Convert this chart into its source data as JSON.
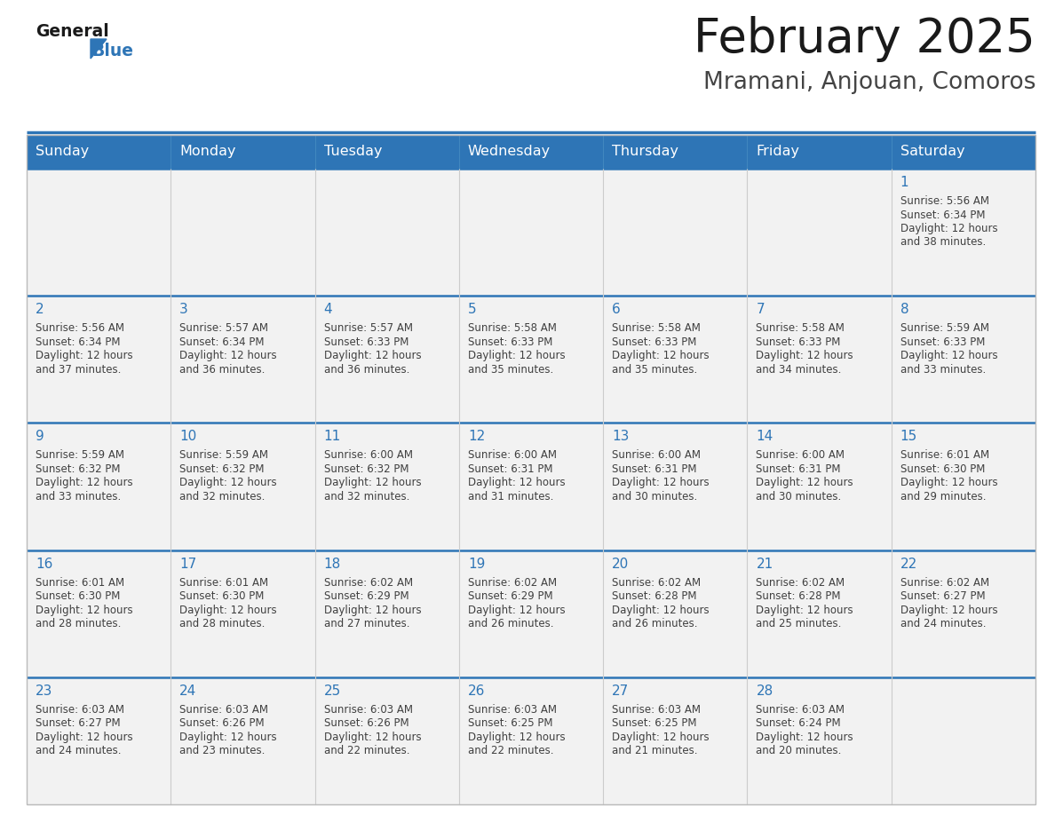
{
  "title": "February 2025",
  "subtitle": "Mramani, Anjouan, Comoros",
  "days_of_week": [
    "Sunday",
    "Monday",
    "Tuesday",
    "Wednesday",
    "Thursday",
    "Friday",
    "Saturday"
  ],
  "header_bg": "#2E75B6",
  "header_text": "#FFFFFF",
  "cell_bg_light": "#F2F2F2",
  "cell_bg_white": "#FFFFFF",
  "border_color": "#AAAAAA",
  "row_sep_color": "#2E75B6",
  "day_number_color": "#2E75B6",
  "cell_text_color": "#404040",
  "title_color": "#1a1a1a",
  "subtitle_color": "#444444",
  "logo_general_color": "#1a1a1a",
  "logo_blue_color": "#2E75B6",
  "weeks": [
    [
      null,
      null,
      null,
      null,
      null,
      null,
      {
        "day": 1,
        "sunrise": "5:56 AM",
        "sunset": "6:34 PM",
        "daylight_hours": 12,
        "daylight_minutes": 38
      }
    ],
    [
      {
        "day": 2,
        "sunrise": "5:56 AM",
        "sunset": "6:34 PM",
        "daylight_hours": 12,
        "daylight_minutes": 37
      },
      {
        "day": 3,
        "sunrise": "5:57 AM",
        "sunset": "6:34 PM",
        "daylight_hours": 12,
        "daylight_minutes": 36
      },
      {
        "day": 4,
        "sunrise": "5:57 AM",
        "sunset": "6:33 PM",
        "daylight_hours": 12,
        "daylight_minutes": 36
      },
      {
        "day": 5,
        "sunrise": "5:58 AM",
        "sunset": "6:33 PM",
        "daylight_hours": 12,
        "daylight_minutes": 35
      },
      {
        "day": 6,
        "sunrise": "5:58 AM",
        "sunset": "6:33 PM",
        "daylight_hours": 12,
        "daylight_minutes": 35
      },
      {
        "day": 7,
        "sunrise": "5:58 AM",
        "sunset": "6:33 PM",
        "daylight_hours": 12,
        "daylight_minutes": 34
      },
      {
        "day": 8,
        "sunrise": "5:59 AM",
        "sunset": "6:33 PM",
        "daylight_hours": 12,
        "daylight_minutes": 33
      }
    ],
    [
      {
        "day": 9,
        "sunrise": "5:59 AM",
        "sunset": "6:32 PM",
        "daylight_hours": 12,
        "daylight_minutes": 33
      },
      {
        "day": 10,
        "sunrise": "5:59 AM",
        "sunset": "6:32 PM",
        "daylight_hours": 12,
        "daylight_minutes": 32
      },
      {
        "day": 11,
        "sunrise": "6:00 AM",
        "sunset": "6:32 PM",
        "daylight_hours": 12,
        "daylight_minutes": 32
      },
      {
        "day": 12,
        "sunrise": "6:00 AM",
        "sunset": "6:31 PM",
        "daylight_hours": 12,
        "daylight_minutes": 31
      },
      {
        "day": 13,
        "sunrise": "6:00 AM",
        "sunset": "6:31 PM",
        "daylight_hours": 12,
        "daylight_minutes": 30
      },
      {
        "day": 14,
        "sunrise": "6:00 AM",
        "sunset": "6:31 PM",
        "daylight_hours": 12,
        "daylight_minutes": 30
      },
      {
        "day": 15,
        "sunrise": "6:01 AM",
        "sunset": "6:30 PM",
        "daylight_hours": 12,
        "daylight_minutes": 29
      }
    ],
    [
      {
        "day": 16,
        "sunrise": "6:01 AM",
        "sunset": "6:30 PM",
        "daylight_hours": 12,
        "daylight_minutes": 28
      },
      {
        "day": 17,
        "sunrise": "6:01 AM",
        "sunset": "6:30 PM",
        "daylight_hours": 12,
        "daylight_minutes": 28
      },
      {
        "day": 18,
        "sunrise": "6:02 AM",
        "sunset": "6:29 PM",
        "daylight_hours": 12,
        "daylight_minutes": 27
      },
      {
        "day": 19,
        "sunrise": "6:02 AM",
        "sunset": "6:29 PM",
        "daylight_hours": 12,
        "daylight_minutes": 26
      },
      {
        "day": 20,
        "sunrise": "6:02 AM",
        "sunset": "6:28 PM",
        "daylight_hours": 12,
        "daylight_minutes": 26
      },
      {
        "day": 21,
        "sunrise": "6:02 AM",
        "sunset": "6:28 PM",
        "daylight_hours": 12,
        "daylight_minutes": 25
      },
      {
        "day": 22,
        "sunrise": "6:02 AM",
        "sunset": "6:27 PM",
        "daylight_hours": 12,
        "daylight_minutes": 24
      }
    ],
    [
      {
        "day": 23,
        "sunrise": "6:03 AM",
        "sunset": "6:27 PM",
        "daylight_hours": 12,
        "daylight_minutes": 24
      },
      {
        "day": 24,
        "sunrise": "6:03 AM",
        "sunset": "6:26 PM",
        "daylight_hours": 12,
        "daylight_minutes": 23
      },
      {
        "day": 25,
        "sunrise": "6:03 AM",
        "sunset": "6:26 PM",
        "daylight_hours": 12,
        "daylight_minutes": 22
      },
      {
        "day": 26,
        "sunrise": "6:03 AM",
        "sunset": "6:25 PM",
        "daylight_hours": 12,
        "daylight_minutes": 22
      },
      {
        "day": 27,
        "sunrise": "6:03 AM",
        "sunset": "6:25 PM",
        "daylight_hours": 12,
        "daylight_minutes": 21
      },
      {
        "day": 28,
        "sunrise": "6:03 AM",
        "sunset": "6:24 PM",
        "daylight_hours": 12,
        "daylight_minutes": 20
      },
      null
    ]
  ]
}
